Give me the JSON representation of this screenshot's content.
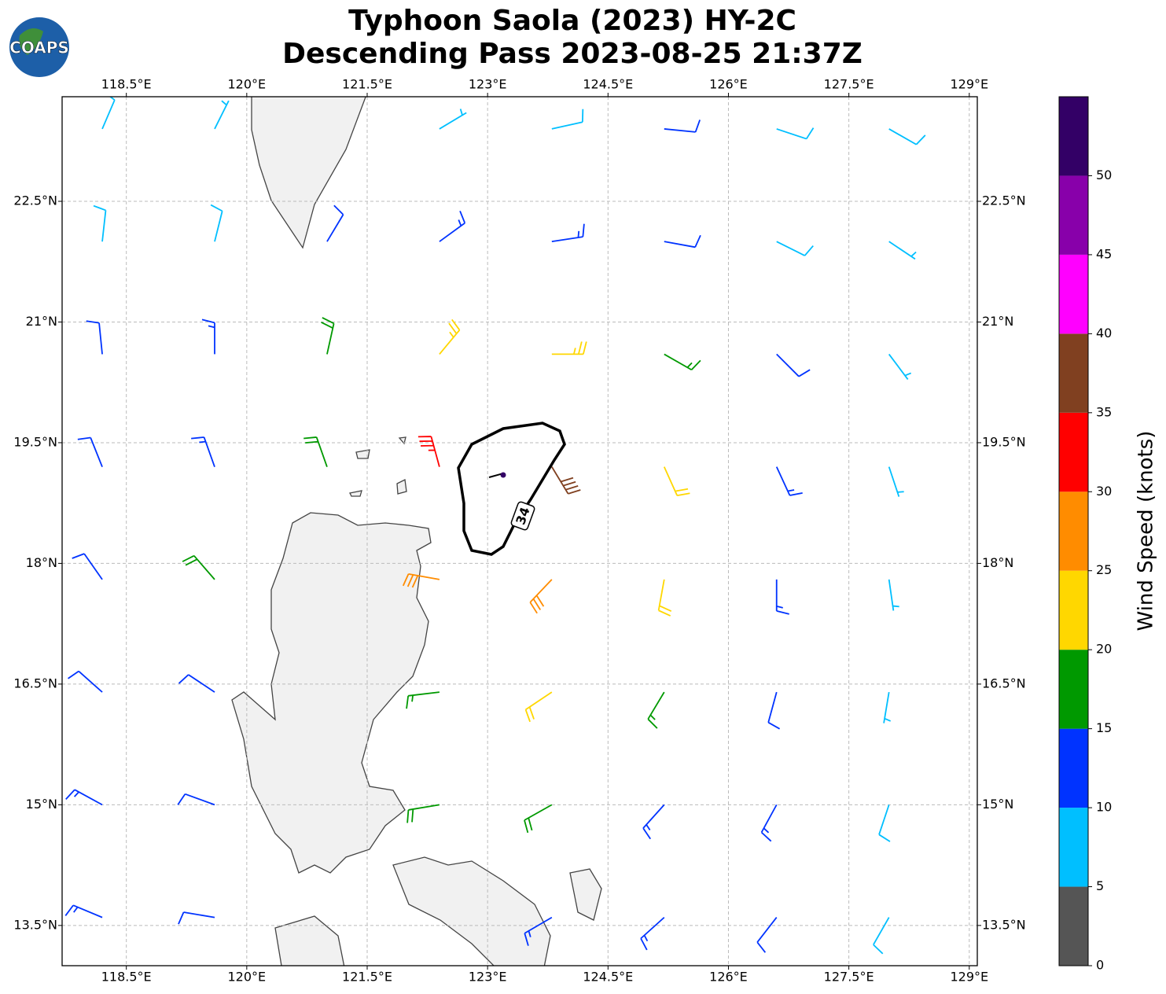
{
  "logo": "COAPS",
  "chart_data": {
    "type": "barbs",
    "title": "Typhoon Saola (2023) HY-2C",
    "subtitle": "Descending Pass 2023-08-25 21:37Z",
    "xlim": [
      117.7,
      129.1
    ],
    "ylim": [
      13.0,
      23.8
    ],
    "xticks": [
      {
        "value": 118.5,
        "label": "118.5°E"
      },
      {
        "value": 120,
        "label": "120°E"
      },
      {
        "value": 121.5,
        "label": "121.5°E"
      },
      {
        "value": 123,
        "label": "123°E"
      },
      {
        "value": 124.5,
        "label": "124.5°E"
      },
      {
        "value": 126,
        "label": "126°E"
      },
      {
        "value": 127.5,
        "label": "127.5°E"
      },
      {
        "value": 129,
        "label": "129°E"
      }
    ],
    "yticks": [
      {
        "value": 13.5,
        "label": "13.5°N"
      },
      {
        "value": 15,
        "label": "15°N"
      },
      {
        "value": 16.5,
        "label": "16.5°N"
      },
      {
        "value": 18,
        "label": "18°N"
      },
      {
        "value": 19.5,
        "label": "19.5°N"
      },
      {
        "value": 21,
        "label": "21°N"
      },
      {
        "value": 22.5,
        "label": "22.5°N"
      }
    ],
    "grid": true,
    "lon": [
      118.2,
      119.6,
      121.0,
      122.4,
      123.8,
      125.2,
      126.6,
      128.0
    ],
    "lat": [
      23.4,
      22.0,
      20.6,
      19.2,
      17.8,
      16.4,
      15.0,
      13.6
    ],
    "u": [
      [
        -3,
        -3,
        null,
        -5,
        -9,
        -10,
        -9,
        -7
      ],
      [
        -1,
        -2,
        -6,
        -11,
        -13,
        -11,
        -8,
        -6
      ],
      [
        1,
        0,
        -4,
        -15,
        -24,
        -14,
        -8,
        -3
      ],
      [
        4,
        5,
        6,
        9,
        -20,
        -9,
        -6,
        -2
      ],
      [
        7,
        13,
        null,
        28,
        19,
        4,
        0,
        -1
      ],
      [
        9,
        9,
        null,
        17,
        18,
        9,
        3,
        1
      ],
      [
        11,
        11,
        null,
        18,
        16,
        9,
        6,
        3
      ],
      [
        12,
        12,
        null,
        null,
        12,
        10,
        7,
        4
      ]
    ],
    "v": [
      [
        -7,
        -6,
        null,
        -3,
        -2,
        1,
        3,
        4
      ],
      [
        -9,
        -8,
        -10,
        -8,
        -2,
        2,
        4,
        4
      ],
      [
        -10,
        -14,
        -18,
        -18,
        0,
        8,
        8,
        4
      ],
      [
        -10,
        -14,
        -17,
        -33,
        33,
        20,
        13,
        6
      ],
      [
        -10,
        -15,
        null,
        -5,
        20,
        22,
        14,
        7
      ],
      [
        -8,
        -6,
        null,
        2,
        12,
        15,
        11,
        6
      ],
      [
        -6,
        -4,
        null,
        3,
        9,
        10,
        11,
        9
      ],
      [
        -5,
        -2,
        null,
        null,
        7,
        9,
        9,
        7
      ]
    ],
    "contour_level": 34,
    "colorbar": {
      "label": "Wind Speed (knots)",
      "ylim": [
        0,
        55
      ],
      "bounds": [
        0,
        5,
        10,
        15,
        20,
        25,
        30,
        35,
        40,
        45,
        50,
        55
      ],
      "colors": [
        "#555555",
        "#00bfff",
        "#0033ff",
        "#009900",
        "#ffd700",
        "#ff8c00",
        "#ff0000",
        "#804020",
        "#ff00ff",
        "#8800aa",
        "#330066"
      ],
      "yticks": [
        0,
        5,
        10,
        15,
        20,
        25,
        30,
        35,
        40,
        45,
        50
      ]
    }
  }
}
